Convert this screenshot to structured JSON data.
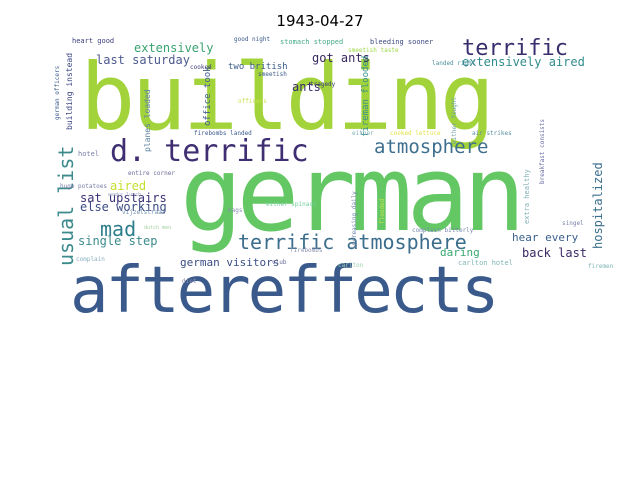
{
  "title": "1943-04-27",
  "words": [
    {
      "text": "building",
      "color": "#a2d33a"
    },
    {
      "text": "german",
      "color": "#63c764"
    },
    {
      "text": "aftereffects",
      "color": "#3b5a8c"
    },
    {
      "text": "d. terrific",
      "color": "#3f2f72"
    },
    {
      "text": "terrific atmosphere",
      "color": "#3b6d8c"
    },
    {
      "text": "atmosphere",
      "color": "#3e6f8f"
    },
    {
      "text": "terrific",
      "color": "#3a2d6e"
    },
    {
      "text": "usual list",
      "color": "#3d8a8d"
    },
    {
      "text": "mad",
      "color": "#2c7f8a"
    },
    {
      "text": "got ants",
      "color": "#38265e"
    },
    {
      "text": "extensively",
      "color": "#39a36f"
    },
    {
      "text": "extensively aired",
      "color": "#2f8c8a"
    },
    {
      "text": "last saturday",
      "color": "#4c5a8e"
    },
    {
      "text": "sat upstairs",
      "color": "#3a3276"
    },
    {
      "text": "else working",
      "color": "#3a4c85"
    },
    {
      "text": "single step",
      "color": "#3b8a8c"
    },
    {
      "text": "aired",
      "color": "#c6de2e"
    },
    {
      "text": "ants",
      "color": "#3b2a6c"
    },
    {
      "text": "hear every",
      "color": "#3b5f8c"
    },
    {
      "text": "daring",
      "color": "#3aa86f"
    },
    {
      "text": "back last",
      "color": "#3b2a64"
    },
    {
      "text": "german visitors",
      "color": "#3a4e86"
    },
    {
      "text": "hospitalized",
      "color": "#3b6f8e"
    },
    {
      "text": "fireman flooded",
      "color": "#3a8f8a"
    },
    {
      "text": "two british",
      "color": "#3a5c8a"
    },
    {
      "text": "office took",
      "color": "#3d5e8c"
    },
    {
      "text": "planes loaded",
      "color": "#5a7fa3"
    },
    {
      "text": "building instead",
      "color": "#3a4682"
    },
    {
      "text": "heart good",
      "color": "#3a3f7c"
    },
    {
      "text": "good night",
      "color": "#3b5888"
    },
    {
      "text": "stomach stopped",
      "color": "#45a88a"
    },
    {
      "text": "bleeding sooner",
      "color": "#3c4a82"
    },
    {
      "text": "german officers",
      "color": "#3a5a8c"
    },
    {
      "text": "cooked",
      "color": "#3f3f7a"
    },
    {
      "text": "smeetish",
      "color": "#3a5a8a"
    },
    {
      "text": "tragedy",
      "color": "#3a3a78"
    },
    {
      "text": "landed right",
      "color": "#4e8fa0"
    },
    {
      "text": "smeetish taste",
      "color": "#9fd94a"
    },
    {
      "text": "officers",
      "color": "#c8e14a"
    },
    {
      "text": "either fought",
      "color": "#6fa3a8"
    },
    {
      "text": "either",
      "color": "#7fb0b5"
    },
    {
      "text": "firebombs landed",
      "color": "#3b5a8c"
    },
    {
      "text": "air strikes",
      "color": "#5a8fa5"
    },
    {
      "text": "breakfast consists",
      "color": "#6a6aa5"
    },
    {
      "text": "extra healthy",
      "color": "#7fb0b5"
    },
    {
      "text": "hotel",
      "color": "#7a7fa8"
    },
    {
      "text": "entire corner",
      "color": "#6a6a9a"
    },
    {
      "text": "huge potatoes",
      "color": "#7a7fa8"
    },
    {
      "text": "weeks lunch",
      "color": "#9aa0bf"
    },
    {
      "text": "vijzelstraat",
      "color": "#6f8fb0"
    },
    {
      "text": "bags",
      "color": "#8a8fb0"
    },
    {
      "text": "either spinach",
      "color": "#6fcf9a"
    },
    {
      "text": "increasing daily",
      "color": "#6a7fa5"
    },
    {
      "text": "flooded",
      "color": "#c8e14a"
    },
    {
      "text": "cooked lettuce",
      "color": "#e0e04a"
    },
    {
      "text": "complain bitterly",
      "color": "#7a8ab0"
    },
    {
      "text": "singel",
      "color": "#7a7fa8"
    },
    {
      "text": "club",
      "color": "#6a6a9a"
    },
    {
      "text": "carlton",
      "color": "#9fd0b0"
    },
    {
      "text": "carlton hotel",
      "color": "#7fb5b5"
    },
    {
      "text": "firemen",
      "color": "#7fb5b5"
    },
    {
      "text": "firebombs",
      "color": "#8a8fb0"
    },
    {
      "text": "dutch men",
      "color": "#a0d0a0"
    },
    {
      "text": "complain",
      "color": "#8ab0c0"
    },
    {
      "text": "diet",
      "color": "#8a8fb0"
    }
  ]
}
